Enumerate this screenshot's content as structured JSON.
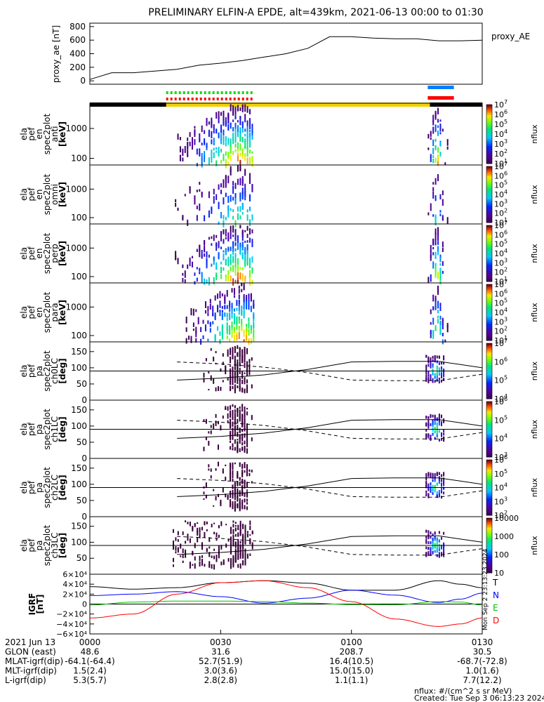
{
  "title": "PRELIMINARY ELFIN-A EPDE, alt=439km, 2021-06-13 00:00 to 01:30",
  "chart_data": [
    {
      "type": "line",
      "panel": "proxy_ae",
      "ylabel": "proxy_ae [nT]",
      "legend": "proxy_AE",
      "ylim": [
        -50,
        850
      ],
      "yticks": [
        "0",
        "200",
        "400",
        "600",
        "800"
      ],
      "x_min": [
        0,
        5,
        10,
        20,
        25,
        30,
        35,
        40,
        45,
        50,
        55,
        60,
        65,
        70,
        75,
        80,
        85,
        90
      ],
      "values": [
        20,
        120,
        120,
        170,
        230,
        260,
        300,
        350,
        400,
        480,
        650,
        650,
        630,
        620,
        620,
        590,
        590,
        600
      ]
    },
    {
      "type": "heatmap",
      "panel": "antiparallel",
      "ylabel": [
        "ela",
        "pef",
        "en",
        "spec2plot",
        "anti",
        "[keV]"
      ],
      "ylog": true,
      "ylim": [
        60,
        7000
      ],
      "yticks": [
        "100",
        "1000"
      ],
      "colorbar": {
        "label": "nflux",
        "ticks": [
          "10^1",
          "10^2",
          "10^3",
          "10^4",
          "10^5",
          "10^6",
          "10^7"
        ]
      },
      "bursts": [
        {
          "start_min": 19.5,
          "end_min": 37.5,
          "peak_min": 34
        },
        {
          "start_min": 77.5,
          "end_min": 82,
          "peak_min": 79.5
        }
      ]
    },
    {
      "type": "heatmap",
      "panel": "omni",
      "ylabel": [
        "ela",
        "pef",
        "en",
        "spec2plot",
        "omni",
        "[keV]"
      ],
      "ylog": true,
      "ylim": [
        60,
        7000
      ],
      "yticks": [
        "100",
        "1000"
      ],
      "colorbar": {
        "label": "nflux",
        "ticks": [
          "10^1",
          "10^2",
          "10^3",
          "10^4",
          "10^5",
          "10^6",
          "10^7"
        ]
      },
      "bursts": [
        {
          "start_min": 19.5,
          "end_min": 37.5,
          "peak_min": 34
        },
        {
          "start_min": 77.5,
          "end_min": 82,
          "peak_min": 79.5
        }
      ]
    },
    {
      "type": "heatmap",
      "panel": "perp",
      "ylabel": [
        "ela",
        "pef",
        "en",
        "spec2plot",
        "perp",
        "[keV]"
      ],
      "ylog": true,
      "ylim": [
        60,
        7000
      ],
      "yticks": [
        "100",
        "1000"
      ],
      "colorbar": {
        "label": "nflux",
        "ticks": [
          "10^1",
          "10^2",
          "10^3",
          "10^4",
          "10^5",
          "10^6",
          "10^7"
        ]
      },
      "bursts": [
        {
          "start_min": 19.5,
          "end_min": 37.5,
          "peak_min": 34
        },
        {
          "start_min": 77.5,
          "end_min": 82,
          "peak_min": 79.5
        }
      ]
    },
    {
      "type": "heatmap",
      "panel": "para",
      "ylabel": [
        "ela",
        "pef",
        "en",
        "spec2plot",
        "para",
        "[keV]"
      ],
      "ylog": true,
      "ylim": [
        60,
        7000
      ],
      "yticks": [
        "100",
        "1000"
      ],
      "colorbar": {
        "label": "nflux",
        "ticks": [
          "10^1",
          "10^2",
          "10^3",
          "10^4",
          "10^5",
          "10^6",
          "10^7"
        ]
      },
      "bursts": [
        {
          "start_min": 22,
          "end_min": 37.5,
          "peak_min": 34.5
        },
        {
          "start_min": 77.5,
          "end_min": 82,
          "peak_min": 79.5
        }
      ]
    },
    {
      "type": "heatmap",
      "panel": "ch0LC",
      "ylabel": [
        "ela",
        "pef",
        "pa",
        "spec2plot",
        "ch0LC",
        "[deg]"
      ],
      "ylim": [
        0,
        180
      ],
      "yticks": [
        "0",
        "50",
        "100",
        "150"
      ],
      "colorbar": {
        "label": "nflux",
        "ticks": [
          "10^4",
          "10^5",
          "10^6",
          "10^7"
        ]
      }
    },
    {
      "type": "heatmap",
      "panel": "ch1LC",
      "ylabel": [
        "ela",
        "pef",
        "pa",
        "spec2plot",
        "ch1LC",
        "[deg]"
      ],
      "ylim": [
        0,
        180
      ],
      "yticks": [
        "0",
        "50",
        "100",
        "150"
      ],
      "colorbar": {
        "label": "nflux",
        "ticks": [
          "10^3",
          "10^4",
          "10^5",
          "10^6"
        ]
      }
    },
    {
      "type": "heatmap",
      "panel": "ch2LC",
      "ylabel": [
        "ela",
        "pef",
        "pa",
        "spec2plot",
        "ch2LC",
        "[deg]"
      ],
      "ylim": [
        0,
        180
      ],
      "yticks": [
        "0",
        "50",
        "100",
        "150"
      ],
      "colorbar": {
        "label": "nflux",
        "ticks": [
          "10^2",
          "10^3",
          "10^4",
          "10^5",
          "10^6"
        ]
      }
    },
    {
      "type": "heatmap",
      "panel": "ch3LC",
      "ylabel": [
        "ela",
        "pef",
        "pa",
        "spec2plot",
        "ch3LC",
        "[deg]"
      ],
      "ylim": [
        0,
        180
      ],
      "yticks": [
        "50",
        "100",
        "150"
      ],
      "colorbar": {
        "label": "nflux",
        "ticks": [
          "10",
          "100",
          "1000",
          "10000"
        ]
      }
    },
    {
      "type": "line",
      "panel": "IGRF",
      "ylabel": "IGRF [nT]",
      "ylim": [
        -60000,
        60000
      ],
      "yticks": [
        "6×10⁴",
        "4×10⁴",
        "2×10⁴",
        "0",
        "−2×10⁴",
        "−4×10⁴",
        "−6×10⁴"
      ],
      "series": [
        {
          "name": "T",
          "color": "#000000",
          "x_min": [
            0,
            10,
            20,
            30,
            40,
            50,
            60,
            70,
            80,
            85,
            90
          ],
          "values": [
            35000,
            30000,
            33000,
            43000,
            47000,
            42000,
            28000,
            28000,
            47000,
            40000,
            33000
          ]
        },
        {
          "name": "N",
          "color": "#0000ff",
          "x_min": [
            0,
            10,
            20,
            30,
            40,
            50,
            60,
            70,
            80,
            85,
            90
          ],
          "values": [
            17000,
            20000,
            25000,
            15000,
            2000,
            12000,
            28000,
            18000,
            3000,
            10000,
            22000
          ]
        },
        {
          "name": "E",
          "color": "#00c000",
          "x_min": [
            0,
            10,
            20,
            30,
            40,
            50,
            60,
            70,
            80,
            85,
            90
          ],
          "values": [
            -2000,
            4000,
            6000,
            6000,
            5000,
            2000,
            -1000,
            -1500,
            5000,
            4000,
            -2000
          ]
        },
        {
          "name": "D",
          "color": "#ff0000",
          "x_min": [
            0,
            10,
            20,
            30,
            40,
            50,
            60,
            70,
            80,
            85,
            90
          ],
          "values": [
            -28000,
            -20000,
            20000,
            43000,
            47000,
            33000,
            5000,
            -30000,
            -45000,
            -40000,
            -28000
          ]
        }
      ]
    }
  ],
  "xaxis": {
    "tick_labels": [
      "0000",
      "0030",
      "0100",
      "0130"
    ],
    "rows": [
      {
        "label": "2021 Jun 13",
        "values": [
          "0000",
          "0030",
          "0100",
          "0130"
        ]
      },
      {
        "label": "GLON (east)",
        "values": [
          "48.6",
          "31.6",
          "208.7",
          "30.5"
        ]
      },
      {
        "label": "MLAT-igrf(dip)",
        "values": [
          "-64.1(-64.4)",
          "52.7(51.9)",
          "16.4(10.5)",
          "-68.7(-72.8)"
        ]
      },
      {
        "label": "MLT-igrf(dip)",
        "values": [
          "1.5(2.4)",
          "3.0(3.6)",
          "15.0(15.0)",
          "1.0(1.6)"
        ]
      },
      {
        "label": "L-igrf(dip)",
        "values": [
          "5.3(5.7)",
          "2.8(2.8)",
          "1.1(1.1)",
          "7.7(12.2)"
        ]
      }
    ]
  },
  "footer": {
    "units": "nflux: #/(cm^2 s sr MeV)",
    "created": "Created: Tue Sep  3 06:13:23 2024",
    "side_stamp": "Mon Sep 2 23:13:23 2024"
  },
  "colors": {
    "status_black": "#000000",
    "status_yellow": "#f0d000",
    "bar_green": "#00e000",
    "bar_red": "#ff0000",
    "bar_blue": "#0080ff"
  }
}
